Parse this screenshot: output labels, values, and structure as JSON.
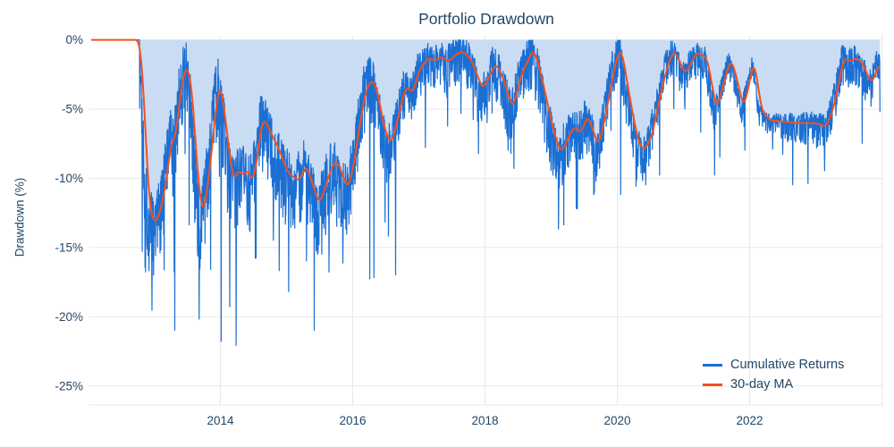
{
  "chart_data": {
    "type": "area",
    "title": "Portfolio Drawdown",
    "xlabel": "",
    "ylabel": "Drawdown (%)",
    "x_range": [
      2012.02,
      2024.02
    ],
    "y_range": [
      0.3,
      -26.5
    ],
    "grid": true,
    "x_ticks": [
      2014,
      2016,
      2018,
      2020,
      2022
    ],
    "x_tick_labels": [
      "2014",
      "2016",
      "2018",
      "2020",
      "2022"
    ],
    "extra_gridlines_x": [
      2024
    ],
    "y_ticks": [
      0,
      -5,
      -10,
      -15,
      -20,
      -25
    ],
    "y_tick_labels": [
      "0%",
      "-5%",
      "-10%",
      "-15%",
      "-20%",
      "-25%"
    ],
    "legend": [
      {
        "label": "Cumulative Returns",
        "color": "#1b6fd3"
      },
      {
        "label": "30-day MA",
        "color": "#f4501e"
      }
    ],
    "colors": {
      "cumulative_line": "#1b6fd3",
      "cumulative_fill": "#cadcf3",
      "ma_line": "#f4501e",
      "text": "#1f4668",
      "grid": "#e8e8e8",
      "background": "#ffffff"
    },
    "series": {
      "ma_30d": {
        "name": "30-day MA",
        "anchors": [
          [
            2012.05,
            0
          ],
          [
            2012.78,
            0
          ],
          [
            2012.84,
            -3.5
          ],
          [
            2012.89,
            -9.0
          ],
          [
            2012.94,
            -12.5
          ],
          [
            2013.0,
            -13.2
          ],
          [
            2013.06,
            -12.9
          ],
          [
            2013.13,
            -11.6
          ],
          [
            2013.2,
            -9.6
          ],
          [
            2013.27,
            -6.9
          ],
          [
            2013.32,
            -7.4
          ],
          [
            2013.38,
            -4.5
          ],
          [
            2013.46,
            -2.0
          ],
          [
            2013.51,
            -2.1
          ],
          [
            2013.55,
            -2.6
          ],
          [
            2013.6,
            -5.5
          ],
          [
            2013.66,
            -10.0
          ],
          [
            2013.73,
            -12.7
          ],
          [
            2013.79,
            -11.3
          ],
          [
            2013.86,
            -8.5
          ],
          [
            2013.93,
            -5.0
          ],
          [
            2013.99,
            -2.9
          ],
          [
            2014.06,
            -5.0
          ],
          [
            2014.13,
            -7.9
          ],
          [
            2014.2,
            -10.3
          ],
          [
            2014.28,
            -9.3
          ],
          [
            2014.35,
            -9.9
          ],
          [
            2014.42,
            -9.2
          ],
          [
            2014.47,
            -10.4
          ],
          [
            2014.55,
            -9.0
          ],
          [
            2014.61,
            -6.4
          ],
          [
            2014.66,
            -5.6
          ],
          [
            2014.75,
            -6.6
          ],
          [
            2014.89,
            -7.9
          ],
          [
            2015.02,
            -9.6
          ],
          [
            2015.19,
            -10.2
          ],
          [
            2015.3,
            -9.0
          ],
          [
            2015.4,
            -10.5
          ],
          [
            2015.5,
            -11.9
          ],
          [
            2015.6,
            -10.4
          ],
          [
            2015.7,
            -9.0
          ],
          [
            2015.77,
            -8.7
          ],
          [
            2015.85,
            -9.8
          ],
          [
            2015.93,
            -10.8
          ],
          [
            2016.03,
            -8.7
          ],
          [
            2016.11,
            -6.0
          ],
          [
            2016.2,
            -3.6
          ],
          [
            2016.3,
            -2.8
          ],
          [
            2016.37,
            -3.6
          ],
          [
            2016.48,
            -6.4
          ],
          [
            2016.58,
            -7.6
          ],
          [
            2016.68,
            -5.8
          ],
          [
            2016.76,
            -4.1
          ],
          [
            2016.82,
            -3.3
          ],
          [
            2016.91,
            -3.9
          ],
          [
            2017.01,
            -2.1
          ],
          [
            2017.15,
            -1.3
          ],
          [
            2017.25,
            -1.5
          ],
          [
            2017.35,
            -1.2
          ],
          [
            2017.45,
            -1.6
          ],
          [
            2017.55,
            -1.1
          ],
          [
            2017.65,
            -0.8
          ],
          [
            2017.78,
            -1.3
          ],
          [
            2017.97,
            -3.6
          ],
          [
            2018.16,
            -1.7
          ],
          [
            2018.25,
            -2.4
          ],
          [
            2018.42,
            -5.0
          ],
          [
            2018.55,
            -2.5
          ],
          [
            2018.74,
            -0.6
          ],
          [
            2018.85,
            -2.5
          ],
          [
            2018.95,
            -4.7
          ],
          [
            2019.05,
            -6.8
          ],
          [
            2019.15,
            -8.2
          ],
          [
            2019.25,
            -7.2
          ],
          [
            2019.35,
            -6.2
          ],
          [
            2019.45,
            -6.8
          ],
          [
            2019.55,
            -5.4
          ],
          [
            2019.72,
            -7.7
          ],
          [
            2019.85,
            -4.8
          ],
          [
            2019.91,
            -3.2
          ],
          [
            2020.02,
            -0.7
          ],
          [
            2020.08,
            -1.0
          ],
          [
            2020.2,
            -4.5
          ],
          [
            2020.32,
            -7.4
          ],
          [
            2020.41,
            -8.0
          ],
          [
            2020.52,
            -7.0
          ],
          [
            2020.63,
            -4.5
          ],
          [
            2020.75,
            -2.0
          ],
          [
            2020.86,
            -0.7
          ],
          [
            2021.03,
            -2.5
          ],
          [
            2021.2,
            -0.9
          ],
          [
            2021.36,
            -1.3
          ],
          [
            2021.5,
            -5.1
          ],
          [
            2021.6,
            -3.3
          ],
          [
            2021.72,
            -1.3
          ],
          [
            2021.82,
            -3.0
          ],
          [
            2021.91,
            -5.0
          ],
          [
            2022.0,
            -3.0
          ],
          [
            2022.07,
            -1.4
          ],
          [
            2022.18,
            -5.1
          ],
          [
            2022.31,
            -5.8
          ],
          [
            2022.5,
            -5.9
          ],
          [
            2022.75,
            -6.0
          ],
          [
            2023.0,
            -6.0
          ],
          [
            2023.16,
            -6.3
          ],
          [
            2023.25,
            -5.2
          ],
          [
            2023.33,
            -3.6
          ],
          [
            2023.43,
            -1.2
          ],
          [
            2023.52,
            -1.6
          ],
          [
            2023.6,
            -1.3
          ],
          [
            2023.7,
            -1.6
          ],
          [
            2023.77,
            -2.4
          ],
          [
            2023.85,
            -3.2
          ],
          [
            2023.92,
            -2.2
          ],
          [
            2023.97,
            -1.6
          ]
        ]
      },
      "cumulative_returns": {
        "name": "Cumulative Returns",
        "start": 2012.05,
        "end": 2023.97,
        "step": 0.0042,
        "flat_zero_until": 2012.78,
        "lead": 0.035,
        "noise_seed": 1337,
        "noise_amp": [
          [
            2012.02,
            0
          ],
          [
            2012.78,
            2.4
          ],
          [
            2016.4,
            1.8
          ],
          [
            2016.95,
            1.2
          ],
          [
            2018.6,
            1.5
          ],
          [
            2018.95,
            1.7
          ],
          [
            2019.9,
            1.4
          ],
          [
            2020.75,
            1.05
          ],
          [
            2022.28,
            0.55
          ],
          [
            2023.25,
            1.05
          ]
        ],
        "spikes": [
          [
            2012.82,
            -15.3
          ],
          [
            2012.87,
            -16.8
          ],
          [
            2012.96,
            -16.3
          ],
          [
            2013.02,
            -15.6
          ],
          [
            2013.1,
            -15.2
          ],
          [
            2013.3,
            -16.8
          ],
          [
            2013.31,
            -21.0
          ],
          [
            2013.53,
            -13.4
          ],
          [
            2013.68,
            -20.2
          ],
          [
            2013.85,
            -16.6
          ],
          [
            2014.01,
            -21.8
          ],
          [
            2014.14,
            -19.3
          ],
          [
            2014.24,
            -22.1
          ],
          [
            2014.53,
            -15.8
          ],
          [
            2014.8,
            -14.5
          ],
          [
            2014.89,
            -16.7
          ],
          [
            2015.03,
            -18.2
          ],
          [
            2015.3,
            -16.0
          ],
          [
            2015.42,
            -21.0
          ],
          [
            2015.53,
            -15.5
          ],
          [
            2015.64,
            -16.8
          ],
          [
            2015.76,
            -13.5
          ],
          [
            2016.26,
            -17.3
          ],
          [
            2016.32,
            -17.2
          ],
          [
            2016.54,
            -14.2
          ],
          [
            2016.65,
            -17.0
          ],
          [
            2017.1,
            -7.8
          ],
          [
            2018.03,
            -6.0
          ],
          [
            2018.35,
            -8.0
          ],
          [
            2018.44,
            -9.3
          ],
          [
            2019.11,
            -13.7
          ],
          [
            2019.19,
            -13.4
          ],
          [
            2019.38,
            -12.2
          ],
          [
            2019.65,
            -11.1
          ],
          [
            2020.05,
            -11.2
          ],
          [
            2020.28,
            -10.6
          ],
          [
            2020.43,
            -10.5
          ],
          [
            2020.64,
            -9.8
          ],
          [
            2021.26,
            -6.7
          ],
          [
            2021.47,
            -9.8
          ],
          [
            2021.55,
            -8.5
          ],
          [
            2021.93,
            -8.0
          ],
          [
            2022.5,
            -8.3
          ],
          [
            2022.65,
            -10.5
          ],
          [
            2022.88,
            -10.4
          ],
          [
            2023.3,
            -5.5
          ],
          [
            2023.7,
            -7.5
          ],
          [
            2023.97,
            -5.2
          ]
        ]
      }
    }
  }
}
